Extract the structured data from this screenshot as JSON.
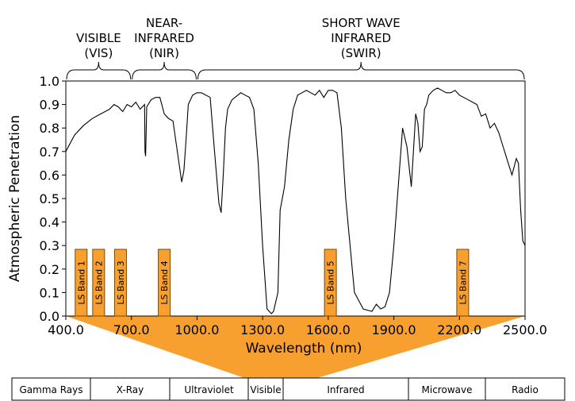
{
  "chart_data": {
    "type": "line",
    "xlabel": "Wavelength (nm)",
    "ylabel": "Atmospheric Penetration",
    "xlim": [
      400,
      2500
    ],
    "ylim": [
      0,
      1
    ],
    "xticks": [
      "400.0",
      "700.0",
      "1000.0",
      "1300.0",
      "1600.0",
      "1900.0",
      "2200.0",
      "2500.0"
    ],
    "yticks": [
      "0.0",
      "0.1",
      "0.2",
      "0.3",
      "0.4",
      "0.5",
      "0.6",
      "0.7",
      "0.8",
      "0.9",
      "1.0"
    ],
    "regions": [
      {
        "label": [
          "VISIBLE",
          "(VIS)"
        ],
        "range": [
          400,
          700
        ]
      },
      {
        "label": [
          "NEAR-",
          "INFRARED",
          "(NIR)"
        ],
        "range": [
          700,
          1000
        ]
      },
      {
        "label": [
          "SHORT WAVE",
          "INFRARED",
          "(SWIR)"
        ],
        "range": [
          1000,
          2500
        ]
      }
    ],
    "bands": [
      {
        "label": "LS Band 1",
        "range": [
          440,
          500
        ]
      },
      {
        "label": "LS Band 2",
        "range": [
          520,
          580
        ]
      },
      {
        "label": "LS Band 3",
        "range": [
          620,
          680
        ]
      },
      {
        "label": "LS Band 4",
        "range": [
          820,
          880
        ]
      },
      {
        "label": "LS Band 5",
        "range": [
          1570,
          1650
        ]
      },
      {
        "label": "LS Band 7",
        "range": [
          2080,
          2350
        ]
      }
    ],
    "series": [
      {
        "x": [
          400,
          440,
          480,
          520,
          560,
          600,
          620,
          640,
          660,
          680,
          700,
          720,
          740,
          760,
          762,
          765,
          770,
          790,
          810,
          830,
          850,
          870,
          890,
          910,
          930,
          940,
          950,
          960,
          980,
          1000,
          1020,
          1060,
          1080,
          1100,
          1110,
          1120,
          1130,
          1140,
          1160,
          1200,
          1220,
          1240,
          1260,
          1280,
          1300,
          1320,
          1340,
          1350,
          1370,
          1380,
          1400,
          1420,
          1440,
          1460,
          1480,
          1500,
          1520,
          1540,
          1560,
          1580,
          1600,
          1620,
          1640,
          1660,
          1680,
          1720,
          1760,
          1800,
          1820,
          1840,
          1860,
          1880,
          1900,
          1920,
          1940,
          1960,
          1980,
          2000,
          2010,
          2020,
          2030,
          2040,
          2050,
          2060,
          2080,
          2100,
          2120,
          2140,
          2160,
          2180,
          2200,
          2240,
          2280,
          2300,
          2320,
          2340,
          2360,
          2380,
          2400,
          2420,
          2440,
          2460,
          2470,
          2480,
          2490,
          2500
        ],
        "y": [
          0.7,
          0.77,
          0.81,
          0.84,
          0.86,
          0.88,
          0.9,
          0.89,
          0.87,
          0.9,
          0.89,
          0.91,
          0.88,
          0.9,
          0.7,
          0.68,
          0.89,
          0.92,
          0.93,
          0.93,
          0.86,
          0.84,
          0.83,
          0.7,
          0.57,
          0.62,
          0.75,
          0.9,
          0.94,
          0.95,
          0.95,
          0.93,
          0.7,
          0.48,
          0.44,
          0.6,
          0.8,
          0.88,
          0.92,
          0.95,
          0.94,
          0.93,
          0.88,
          0.65,
          0.3,
          0.03,
          0.01,
          0.02,
          0.1,
          0.45,
          0.55,
          0.75,
          0.88,
          0.94,
          0.95,
          0.96,
          0.95,
          0.94,
          0.96,
          0.93,
          0.96,
          0.96,
          0.95,
          0.8,
          0.5,
          0.1,
          0.03,
          0.02,
          0.05,
          0.03,
          0.04,
          0.1,
          0.3,
          0.55,
          0.8,
          0.72,
          0.55,
          0.86,
          0.82,
          0.7,
          0.72,
          0.88,
          0.9,
          0.94,
          0.96,
          0.97,
          0.96,
          0.95,
          0.95,
          0.96,
          0.94,
          0.92,
          0.9,
          0.85,
          0.86,
          0.8,
          0.82,
          0.78,
          0.72,
          0.66,
          0.6,
          0.67,
          0.65,
          0.45,
          0.32,
          0.3
        ]
      }
    ]
  },
  "spectrum": [
    "Gamma Rays",
    "X-Ray",
    "Ultraviolet",
    "Visible",
    "Infrared",
    "Microwave",
    "Radio"
  ],
  "colors": {
    "accent": "#f7a030",
    "line": "#000000",
    "band_border": "#7a4a00"
  }
}
